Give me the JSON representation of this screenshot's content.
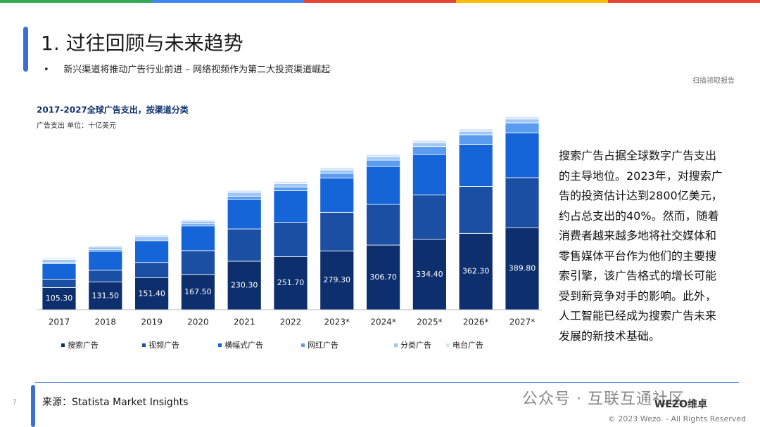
{
  "slide": {
    "title": "1. 过往回顾与未来趋势",
    "bullet": "新兴渠道将推动广告行业前进 – 网络视频作为第二大投资渠道崛起",
    "scan_note": "扫描领取报告",
    "paragraph": "搜索广告占据全球数字广告支出的主导地位。2023年，对搜索广告的投资估计达到2800亿美元，约占总支出的40%。然而，随着消费者越来越多地将社交媒体和零售媒体平台作为他们的主要搜索引擎，该广告格式的增长可能受到新竞争对手的影响。此外，人工智能已经成为搜索广告未来发展的新技术基础。",
    "source": "来源：Statista Market Insights",
    "page_number": "7",
    "watermark": "公众号 · 互联互通社区",
    "logo": "WEZO维卓",
    "copyright": "© 2023 Wezo. - All Rights Reserved"
  },
  "chart_data": {
    "type": "stacked_bar",
    "title": "2017-2027全球广告支出，按渠道分类",
    "subtitle": "广告支出 单位：十亿美元",
    "categories": [
      "2017",
      "2018",
      "2019",
      "2020",
      "2021",
      "2022",
      "2023*",
      "2024*",
      "2025*",
      "2026*",
      "2027*"
    ],
    "series": [
      {
        "name": "搜索广告",
        "color": "#0d2f6e",
        "values": [
          105.3,
          131.5,
          151.4,
          167.5,
          230.3,
          251.7,
          279.3,
          306.7,
          334.4,
          362.3,
          389.8
        ],
        "value_labels": [
          "105.30",
          "131.50",
          "151.40",
          "167.50",
          "230.30",
          "251.70",
          "279.30",
          "306.70",
          "334.40",
          "362.30",
          "389.80"
        ]
      },
      {
        "name": "视频广告",
        "color": "#1a4fa3",
        "values": [
          40,
          56,
          73,
          113,
          153,
          163,
          183,
          193,
          210,
          223,
          237
        ]
      },
      {
        "name": "横幅式广告",
        "color": "#1565d8",
        "values": [
          73,
          90,
          103,
          117,
          140,
          150,
          163,
          180,
          193,
          200,
          213
        ]
      },
      {
        "name": "网红广告",
        "color": "#5b9cf0",
        "values": [
          7,
          7,
          8,
          10,
          15,
          18,
          22,
          30,
          38,
          45,
          47
        ]
      },
      {
        "name": "分类广告",
        "color": "#9fc6f7",
        "values": [
          13,
          13,
          13,
          13,
          18,
          16,
          16,
          16,
          16,
          16,
          18
        ]
      },
      {
        "name": "电台广告",
        "color": "#d6e6fa",
        "values": [
          7,
          7,
          7,
          8,
          10,
          10,
          12,
          12,
          12,
          12,
          12
        ]
      }
    ]
  }
}
